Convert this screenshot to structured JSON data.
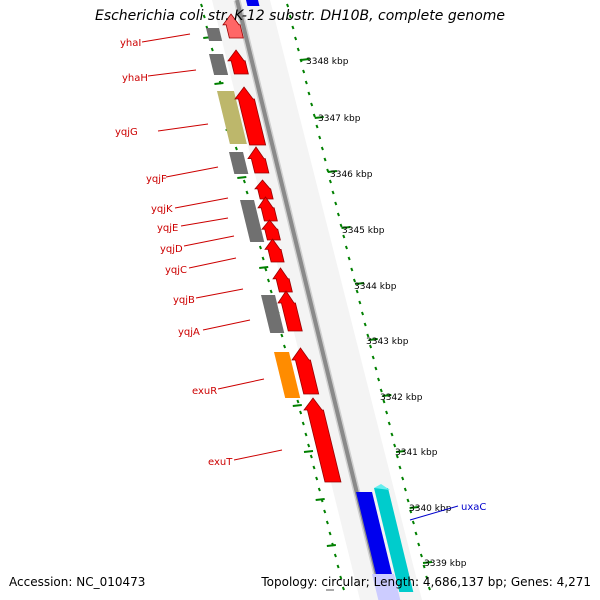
{
  "title": "Escherichia coli str. K-12 substr. DH10B, complete genome",
  "footer": {
    "accession": "Accession: NC_010473",
    "summary": "Topology: circular; Length: 4,686,137 bp; Genes: 4,271"
  },
  "colors": {
    "backbone": "#8a8a8a",
    "tick": "#008000",
    "gene_label_forward": "#cc0000",
    "gene_label_reverse": "#0000cc",
    "cds_red": "#ff0000",
    "gray": "#707070",
    "olive": "#bdb76b",
    "orange": "#ff8c00",
    "blue": "#0000ee",
    "cyan": "#00cccc"
  },
  "kbp_ticks": [
    "3348 kbp",
    "3347 kbp",
    "3346 kbp",
    "3345 kbp",
    "3344 kbp",
    "3343 kbp",
    "3342 kbp",
    "3341 kbp",
    "3340 kbp",
    "3339 kbp"
  ],
  "gene_labels": [
    {
      "name": "yhaI",
      "strand": "forward"
    },
    {
      "name": "yhaH",
      "strand": "forward"
    },
    {
      "name": "yqjG",
      "strand": "forward"
    },
    {
      "name": "yqjF",
      "strand": "forward"
    },
    {
      "name": "yqjK",
      "strand": "forward"
    },
    {
      "name": "yqjE",
      "strand": "forward"
    },
    {
      "name": "yqjD",
      "strand": "forward"
    },
    {
      "name": "yqjC",
      "strand": "forward"
    },
    {
      "name": "yqjB",
      "strand": "forward"
    },
    {
      "name": "yqjA",
      "strand": "forward"
    },
    {
      "name": "exuR",
      "strand": "forward"
    },
    {
      "name": "exuT",
      "strand": "forward"
    },
    {
      "name": "uxaC",
      "strand": "reverse"
    }
  ]
}
